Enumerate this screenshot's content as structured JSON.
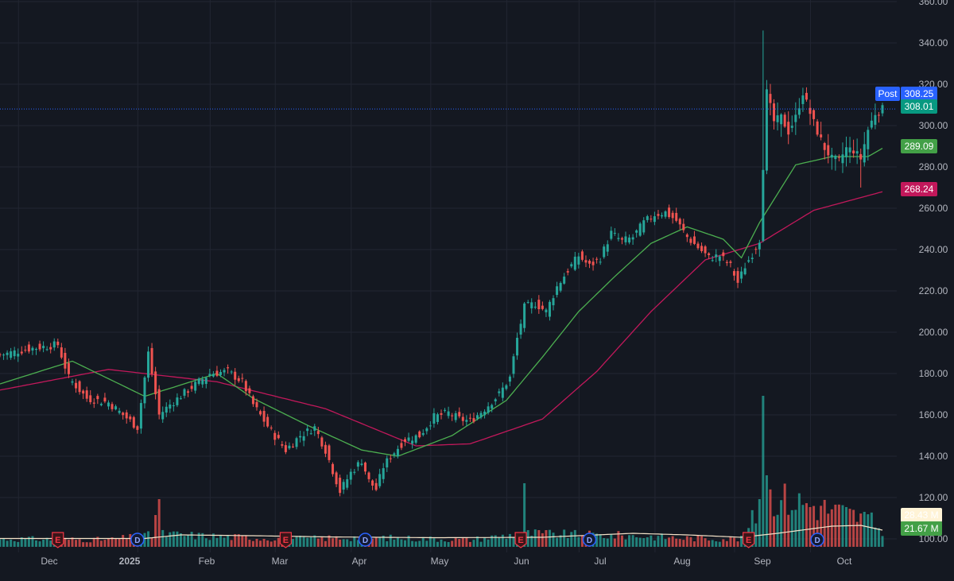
{
  "chart_data": {
    "type": "candlestick",
    "colors": {
      "background": "#141821",
      "grid": "#222632",
      "up": "#26a69a",
      "down": "#ef5350",
      "ma_short": "#4caf50",
      "ma_long": "#c2185b",
      "volume_ma": "#f4e2c8",
      "axis_text": "#b2b5be",
      "price_line": "#2962ff",
      "post_tag": "#2962ff",
      "last_tag": "#089981",
      "ma_short_tag": "#43a047",
      "ma_long_tag": "#c2185b",
      "vol_avg_tag": "#fff3d6",
      "vol_last_tag": "#43a047",
      "earnings": "#f23645",
      "dividend": "#2962ff"
    },
    "y_axis": {
      "min": 100,
      "max": 350,
      "ticks": [
        "100.00",
        "120.00",
        "140.00",
        "160.00",
        "180.00",
        "200.00",
        "220.00",
        "240.00",
        "260.00",
        "280.00",
        "300.00",
        "320.00",
        "340.00",
        "360.00"
      ]
    },
    "x_axis": {
      "labels": [
        "Dec",
        "2025",
        "Feb",
        "Mar",
        "Apr",
        "May",
        "Jun",
        "Jul",
        "Aug",
        "Sep",
        "Oct"
      ]
    },
    "price_tags": {
      "post": {
        "label": "Post",
        "value": "308.25"
      },
      "last": {
        "value": "308.01"
      },
      "ma_short": {
        "value": "289.09"
      },
      "ma_long": {
        "value": "268.24"
      },
      "volume_avg": {
        "value": "28.43 M"
      },
      "volume_last": {
        "value": "21.67 M"
      }
    },
    "events": {
      "earnings_label": "E",
      "dividend_label": "D",
      "earnings_index": [
        16,
        79,
        144,
        207
      ],
      "dividend_index": [
        38,
        101,
        163,
        226
      ]
    },
    "ohlc_key_points": [
      [
        0,
        189
      ],
      [
        8,
        192
      ],
      [
        16,
        194
      ],
      [
        19,
        178
      ],
      [
        24,
        168
      ],
      [
        30,
        166
      ],
      [
        38,
        154
      ],
      [
        41,
        190
      ],
      [
        44,
        160
      ],
      [
        47,
        165
      ],
      [
        52,
        172
      ],
      [
        58,
        180
      ],
      [
        63,
        181
      ],
      [
        67,
        176
      ],
      [
        70,
        165
      ],
      [
        75,
        152
      ],
      [
        79,
        143
      ],
      [
        83,
        150
      ],
      [
        87,
        154
      ],
      [
        90,
        143
      ],
      [
        94,
        123
      ],
      [
        97,
        132
      ],
      [
        100,
        138
      ],
      [
        102,
        128
      ],
      [
        104,
        124
      ],
      [
        106,
        135
      ],
      [
        108,
        140
      ],
      [
        112,
        148
      ],
      [
        116,
        150
      ],
      [
        120,
        159
      ],
      [
        124,
        161
      ],
      [
        127,
        158
      ],
      [
        130,
        157
      ],
      [
        134,
        163
      ],
      [
        138,
        170
      ],
      [
        141,
        178
      ],
      [
        143,
        197
      ],
      [
        145,
        212
      ],
      [
        148,
        214
      ],
      [
        151,
        210
      ],
      [
        154,
        222
      ],
      [
        157,
        230
      ],
      [
        160,
        237
      ],
      [
        163,
        232
      ],
      [
        166,
        236
      ],
      [
        169,
        248
      ],
      [
        172,
        244
      ],
      [
        175,
        246
      ],
      [
        178,
        253
      ],
      [
        181,
        257
      ],
      [
        184,
        258
      ],
      [
        187,
        254
      ],
      [
        190,
        246
      ],
      [
        193,
        241
      ],
      [
        196,
        236
      ],
      [
        199,
        237
      ],
      [
        202,
        232
      ],
      [
        204,
        224
      ],
      [
        206,
        232
      ],
      [
        208,
        238
      ],
      [
        210,
        245
      ],
      [
        212,
        316
      ],
      [
        214,
        302
      ],
      [
        216,
        304
      ],
      [
        218,
        297
      ],
      [
        220,
        304
      ],
      [
        222,
        316
      ],
      [
        224,
        306
      ],
      [
        226,
        297
      ],
      [
        228,
        289
      ],
      [
        230,
        284
      ],
      [
        232,
        283
      ],
      [
        234,
        289
      ],
      [
        236,
        288
      ],
      [
        238,
        284
      ],
      [
        240,
        298
      ],
      [
        242,
        306
      ],
      [
        244,
        308
      ]
    ],
    "ma_short_key": [
      [
        0,
        175
      ],
      [
        20,
        186
      ],
      [
        40,
        169
      ],
      [
        60,
        180
      ],
      [
        70,
        168
      ],
      [
        85,
        155
      ],
      [
        100,
        143
      ],
      [
        110,
        140
      ],
      [
        125,
        150
      ],
      [
        140,
        167
      ],
      [
        150,
        188
      ],
      [
        160,
        210
      ],
      [
        170,
        227
      ],
      [
        180,
        243
      ],
      [
        190,
        251
      ],
      [
        200,
        245
      ],
      [
        205,
        236
      ],
      [
        210,
        253
      ],
      [
        220,
        281
      ],
      [
        230,
        285
      ],
      [
        240,
        285
      ],
      [
        244,
        289
      ]
    ],
    "ma_long_key": [
      [
        0,
        172
      ],
      [
        30,
        182
      ],
      [
        60,
        176
      ],
      [
        90,
        163
      ],
      [
        115,
        145
      ],
      [
        130,
        146
      ],
      [
        150,
        158
      ],
      [
        165,
        181
      ],
      [
        180,
        210
      ],
      [
        195,
        235
      ],
      [
        210,
        243
      ],
      [
        225,
        259
      ],
      [
        244,
        268
      ]
    ],
    "volume_key": [
      [
        0,
        1.0
      ],
      [
        30,
        0.9
      ],
      [
        45,
        1.6
      ],
      [
        60,
        1.3
      ],
      [
        80,
        1.0
      ],
      [
        100,
        1.2
      ],
      [
        130,
        0.9
      ],
      [
        145,
        1.7
      ],
      [
        160,
        1.5
      ],
      [
        175,
        1.4
      ],
      [
        190,
        1.1
      ],
      [
        205,
        1.0
      ],
      [
        212,
        6.5
      ],
      [
        225,
        5.2
      ],
      [
        240,
        3.5
      ],
      [
        244,
        2.0
      ]
    ],
    "volume_ma_key": [
      [
        0,
        1.05
      ],
      [
        40,
        1.05
      ],
      [
        50,
        1.5
      ],
      [
        70,
        1.4
      ],
      [
        90,
        1.25
      ],
      [
        120,
        1.15
      ],
      [
        150,
        1.2
      ],
      [
        175,
        1.7
      ],
      [
        190,
        1.5
      ],
      [
        205,
        1.2
      ],
      [
        215,
        1.7
      ],
      [
        230,
        2.6
      ],
      [
        238,
        2.7
      ],
      [
        244,
        2.1
      ]
    ]
  }
}
